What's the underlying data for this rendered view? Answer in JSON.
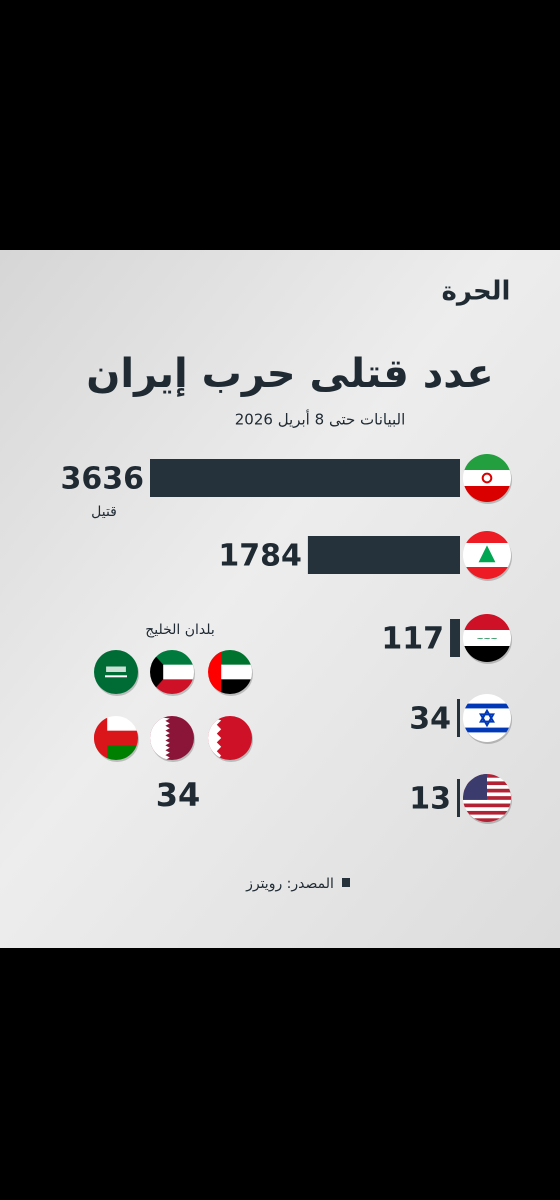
{
  "chart_data": {
    "type": "bar",
    "logo": "الحرة",
    "title": "عدد قتلى حرب إيران",
    "subtitle": "البيانات حتى 8 أبريل 2026",
    "categories": [
      null,
      null,
      null,
      null,
      null
    ],
    "values": [
      3636,
      1784,
      117,
      34,
      13
    ],
    "color": "#25313b",
    "unit_label": "قتيل",
    "gulf": {
      "label": "بلدان الخليج",
      "value": 34
    },
    "source": "المصدر: رويترز"
  }
}
